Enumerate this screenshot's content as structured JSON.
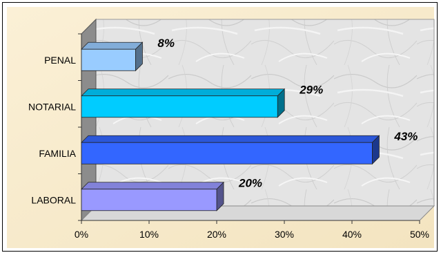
{
  "chart_data": {
    "type": "bar",
    "orientation": "horizontal",
    "style": "3d",
    "categories": [
      "LABORAL",
      "FAMILIA",
      "NOTARIAL",
      "PENAL"
    ],
    "values": [
      20,
      43,
      29,
      8
    ],
    "data_labels": [
      "20%",
      "43%",
      "29%",
      "8%"
    ],
    "x_ticks": [
      "0%",
      "10%",
      "20%",
      "30%",
      "40%",
      "50%"
    ],
    "xlim": [
      0,
      50
    ],
    "bar_colors": [
      "#9999ff",
      "#3366ff",
      "#00ccff",
      "#99ccff"
    ],
    "plot_background": "#e6e6e6",
    "chart_background": "#f7e9c8",
    "grid": false,
    "legend": "none"
  }
}
